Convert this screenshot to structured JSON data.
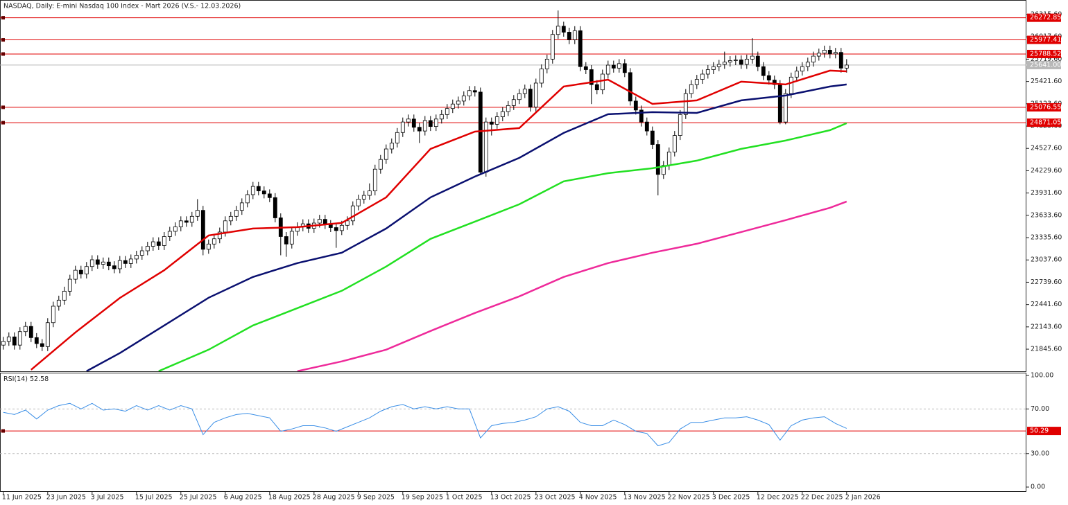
{
  "chart_data": [
    {
      "type": "candlestick",
      "title": "NASDAQ, Daily:  E-mini Nasdaq 100 Index - Mart 2026 (V.S.- 12.03.2026)",
      "xlim": [
        -0.6,
        184.4
      ],
      "ylim": [
        21550,
        26510
      ],
      "yticks": [
        {
          "value": 26315.6,
          "label": "26315.60"
        },
        {
          "value": 26017.6,
          "label": "26017.60"
        },
        {
          "value": 25719.6,
          "label": "25719.60"
        },
        {
          "value": 25421.6,
          "label": "25421.60"
        },
        {
          "value": 25123.6,
          "label": "25123.60"
        },
        {
          "value": 24825.6,
          "label": "24825.60"
        },
        {
          "value": 24527.6,
          "label": "24527.60"
        },
        {
          "value": 24229.6,
          "label": "24229.60"
        },
        {
          "value": 23931.6,
          "label": "23931.60"
        },
        {
          "value": 23633.6,
          "label": "23633.60"
        },
        {
          "value": 23335.6,
          "label": "23335.60"
        },
        {
          "value": 23037.6,
          "label": "23037.60"
        },
        {
          "value": 22739.6,
          "label": "22739.60"
        },
        {
          "value": 22441.6,
          "label": "22441.60"
        },
        {
          "value": 22143.6,
          "label": "22143.60"
        },
        {
          "value": 21845.6,
          "label": "21845.60"
        }
      ],
      "up_color": "#ffffff",
      "down_color": "#000000",
      "open": [
        21900,
        21950,
        22010,
        21900,
        22080,
        22150,
        22000,
        21920,
        21880,
        22200,
        22420,
        22500,
        22620,
        22780,
        22900,
        22850,
        22950,
        23040,
        22980,
        23010,
        22960,
        22920,
        23030,
        22990,
        23050,
        23100,
        23160,
        23220,
        23280,
        23230,
        23350,
        23420,
        23480,
        23560,
        23540,
        23620,
        23700,
        23180,
        23250,
        23320,
        23410,
        23560,
        23620,
        23700,
        23800,
        23910,
        24020,
        23960,
        23920,
        23870,
        23600,
        23350,
        23250,
        23420,
        23480,
        23520,
        23460,
        23530,
        23580,
        23510,
        23470,
        23430,
        23500,
        23560,
        23760,
        23850,
        23900,
        23960,
        24250,
        24380,
        24520,
        24600,
        24740,
        24880,
        24920,
        24810,
        24760,
        24900,
        24820,
        24920,
        24980,
        25060,
        25120,
        25160,
        25230,
        25300,
        25280,
        24210,
        24880,
        24850,
        24950,
        25020,
        25100,
        25180,
        25260,
        25320,
        25080,
        25400,
        25590,
        25720,
        26050,
        26160,
        26080,
        25980,
        26100,
        25620,
        25580,
        25380,
        25310,
        25520,
        25640,
        25600,
        25660,
        25540,
        25160,
        25040,
        24880,
        24760,
        24580,
        24180,
        24300,
        24480,
        24700,
        24980,
        25260,
        25380,
        25450,
        25520,
        25580,
        25620,
        25650,
        25680,
        25700,
        25710,
        25650,
        25720,
        25760,
        25620,
        25500,
        25440,
        25380,
        24880,
        25260,
        25480,
        25560,
        25620,
        25680,
        25760,
        25800,
        25840,
        25790,
        25810,
        25600
      ],
      "high": [
        22010,
        22070,
        22070,
        22140,
        22210,
        22210,
        22060,
        21980,
        22260,
        22480,
        22560,
        22680,
        22840,
        22960,
        22960,
        23010,
        23100,
        23100,
        23070,
        23070,
        23020,
        23090,
        23090,
        23110,
        23160,
        23220,
        23280,
        23340,
        23340,
        23410,
        23480,
        23540,
        23620,
        23620,
        23680,
        23850,
        23760,
        23310,
        23380,
        23470,
        23620,
        23680,
        23760,
        23860,
        23970,
        24080,
        24080,
        24020,
        23980,
        23930,
        23660,
        23410,
        23480,
        23540,
        23580,
        23580,
        23590,
        23640,
        23640,
        23570,
        23530,
        23560,
        23620,
        23820,
        23910,
        23960,
        24060,
        24310,
        24440,
        24580,
        24660,
        24800,
        24940,
        24980,
        24980,
        24870,
        24960,
        24960,
        24980,
        25040,
        25120,
        25180,
        25220,
        25290,
        25360,
        25360,
        25340,
        24940,
        24940,
        25010,
        25080,
        25160,
        25240,
        25320,
        25380,
        25380,
        25460,
        25650,
        25780,
        26110,
        26370,
        26220,
        26140,
        26160,
        26160,
        25680,
        25640,
        25440,
        25580,
        25700,
        25700,
        25720,
        25720,
        25600,
        25220,
        25100,
        24940,
        24820,
        24640,
        24360,
        24540,
        24760,
        25040,
        25320,
        25440,
        25510,
        25580,
        25640,
        25680,
        25710,
        25820,
        25760,
        25770,
        25770,
        25780,
        26000,
        25820,
        25680,
        25560,
        25500,
        25440,
        25320,
        25540,
        25620,
        25680,
        25740,
        25820,
        25860,
        25900,
        25900,
        25870,
        25870,
        25720
      ],
      "low": [
        21840,
        21890,
        21840,
        21840,
        22020,
        21940,
        21860,
        21820,
        21820,
        22140,
        22360,
        22440,
        22560,
        22720,
        22790,
        22790,
        22890,
        22920,
        22920,
        22900,
        22860,
        22860,
        22930,
        22930,
        22990,
        23040,
        23100,
        23160,
        23170,
        23170,
        23290,
        23360,
        23420,
        23480,
        23480,
        23560,
        23100,
        23120,
        23190,
        23260,
        23350,
        23500,
        23560,
        23640,
        23740,
        23850,
        23900,
        23860,
        23810,
        23540,
        23100,
        23080,
        23190,
        23360,
        23420,
        23400,
        23400,
        23470,
        23450,
        23410,
        23200,
        23370,
        23440,
        23500,
        23700,
        23790,
        23840,
        23900,
        24190,
        24320,
        24460,
        24540,
        24680,
        24820,
        24750,
        24600,
        24700,
        24760,
        24760,
        24860,
        24920,
        25000,
        25060,
        25100,
        25170,
        25220,
        24170,
        24150,
        24700,
        24790,
        24890,
        24960,
        25040,
        25120,
        25200,
        25020,
        25020,
        25340,
        25530,
        25660,
        25990,
        26020,
        25920,
        25920,
        25560,
        25520,
        25120,
        25250,
        25250,
        25460,
        25540,
        25540,
        25480,
        25100,
        24980,
        24820,
        24700,
        24520,
        23900,
        24120,
        24240,
        24420,
        24640,
        24920,
        25200,
        25320,
        25390,
        25460,
        25520,
        25560,
        25590,
        25620,
        25640,
        25590,
        25590,
        25660,
        25560,
        25440,
        25380,
        25320,
        24850,
        24850,
        25200,
        25420,
        25500,
        25560,
        25620,
        25700,
        25740,
        25730,
        25730,
        25540,
        25540
      ],
      "close": [
        21950,
        22010,
        21900,
        22080,
        22150,
        22000,
        21920,
        21880,
        22200,
        22420,
        22500,
        22620,
        22780,
        22900,
        22850,
        22950,
        23040,
        22980,
        23010,
        22960,
        22920,
        23030,
        22990,
        23050,
        23100,
        23160,
        23220,
        23280,
        23230,
        23350,
        23420,
        23480,
        23560,
        23540,
        23620,
        23700,
        23180,
        23250,
        23320,
        23410,
        23560,
        23620,
        23700,
        23800,
        23910,
        24020,
        23960,
        23920,
        23870,
        23600,
        23350,
        23250,
        23420,
        23480,
        23520,
        23460,
        23530,
        23580,
        23510,
        23470,
        23430,
        23500,
        23560,
        23760,
        23850,
        23900,
        23960,
        24250,
        24380,
        24520,
        24600,
        24740,
        24880,
        24920,
        24810,
        24760,
        24900,
        24820,
        24920,
        24980,
        25060,
        25120,
        25160,
        25230,
        25300,
        25280,
        24210,
        24880,
        24850,
        24950,
        25020,
        25100,
        25180,
        25260,
        25320,
        25080,
        25400,
        25590,
        25720,
        26050,
        26160,
        26080,
        25980,
        26100,
        25620,
        25580,
        25380,
        25310,
        25520,
        25640,
        25600,
        25660,
        25540,
        25160,
        25040,
        24880,
        24760,
        24580,
        24180,
        24300,
        24480,
        24700,
        24980,
        25260,
        25380,
        25450,
        25520,
        25580,
        25620,
        25650,
        25680,
        25700,
        25710,
        25650,
        25720,
        25760,
        25620,
        25500,
        25440,
        25380,
        24880,
        25260,
        25480,
        25560,
        25620,
        25680,
        25760,
        25800,
        25840,
        25790,
        25810,
        25600,
        25641
      ],
      "series": [
        {
          "color": "#e00000",
          "x": [
            5,
            13,
            21,
            29,
            37,
            45,
            53,
            61,
            69,
            77,
            85,
            93,
            101,
            109,
            117,
            125,
            133,
            141,
            149,
            152
          ],
          "values": [
            21570,
            22070,
            22530,
            22900,
            23365,
            23457,
            23476,
            23532,
            23874,
            24521,
            24752,
            24799,
            25354,
            25446,
            25122,
            25169,
            25419,
            25382,
            25567,
            25557
          ]
        },
        {
          "color": "#0a1070",
          "x": [
            15,
            21,
            29,
            37,
            45,
            53,
            61,
            69,
            77,
            85,
            93,
            101,
            109,
            117,
            125,
            133,
            141,
            149,
            152
          ],
          "values": [
            21552,
            21793,
            22163,
            22533,
            22810,
            22995,
            23134,
            23457,
            23874,
            24151,
            24401,
            24734,
            24984,
            25012,
            25002,
            25169,
            25234,
            25354,
            25382
          ]
        },
        {
          "color": "#22e022",
          "x": [
            28,
            37,
            45,
            53,
            61,
            69,
            77,
            85,
            93,
            101,
            109,
            117,
            125,
            133,
            141,
            149,
            152
          ],
          "values": [
            21552,
            21839,
            22163,
            22394,
            22625,
            22949,
            23319,
            23550,
            23781,
            24087,
            24197,
            24262,
            24364,
            24521,
            24632,
            24771,
            24864
          ]
        },
        {
          "color": "#ee2a9a",
          "x": [
            53,
            61,
            69,
            77,
            85,
            93,
            101,
            109,
            117,
            125,
            133,
            141,
            149,
            152
          ],
          "values": [
            21552,
            21682,
            21839,
            22089,
            22329,
            22551,
            22810,
            22995,
            23134,
            23254,
            23411,
            23569,
            23735,
            23818
          ]
        }
      ],
      "hlines": [
        {
          "value": 26272.85,
          "color": "#e00000"
        },
        {
          "value": 25977.41,
          "color": "#e00000"
        },
        {
          "value": 25788.52,
          "color": "#e00000"
        },
        {
          "value": 25076.55,
          "color": "#e00000"
        },
        {
          "value": 24871.05,
          "color": "#e00000"
        }
      ],
      "last_price": {
        "value": 25641,
        "label": "25641.00"
      },
      "last_price_color": "#b8b8b8"
    },
    {
      "type": "line",
      "title": "RSI(14)",
      "color": "#3a8ee6",
      "xlim": [
        -0.6,
        184.4
      ],
      "ylim": [
        -4.3,
        102.5
      ],
      "x": [
        0,
        2,
        4,
        6,
        8,
        10,
        12,
        14,
        16,
        18,
        20,
        22,
        24,
        26,
        28,
        30,
        32,
        34,
        36,
        38,
        40,
        42,
        44,
        46,
        48,
        50,
        52,
        54,
        56,
        58,
        60,
        62,
        64,
        66,
        68,
        70,
        72,
        74,
        76,
        78,
        80,
        82,
        84,
        86,
        88,
        90,
        92,
        94,
        96,
        98,
        100,
        102,
        104,
        106,
        108,
        110,
        112,
        114,
        116,
        118,
        120,
        122,
        124,
        126,
        128,
        130,
        132,
        134,
        136,
        138,
        140,
        142,
        144,
        146,
        148,
        150,
        152
      ],
      "values": [
        67,
        65,
        69,
        61,
        69,
        73,
        75,
        70,
        75,
        69,
        70,
        68,
        73,
        69,
        73,
        69,
        73,
        70,
        47,
        58,
        62,
        65,
        66,
        64,
        62,
        50,
        52,
        55,
        55,
        53,
        50,
        54,
        58,
        62,
        68,
        72,
        74,
        70,
        72,
        70,
        72,
        70,
        70,
        44,
        55,
        57,
        58,
        60,
        63,
        70,
        72,
        68,
        58,
        55,
        55,
        60,
        56,
        50,
        48,
        37,
        40,
        52,
        58,
        58,
        60,
        62,
        62,
        63,
        60,
        56,
        42,
        55,
        60,
        62,
        63,
        57,
        52.58
      ],
      "yticks": [
        {
          "value": 100,
          "label": "100.00"
        },
        {
          "value": 70,
          "label": "70.00"
        },
        {
          "value": 30,
          "label": "30.00"
        },
        {
          "value": 0,
          "label": "0.00"
        }
      ],
      "levels": [
        70,
        30
      ],
      "hlines": [
        {
          "value": 50.29,
          "color": "#e00000"
        }
      ],
      "xticks": [
        {
          "value": 0,
          "label": "11 Jun 2025"
        },
        {
          "value": 8,
          "label": "23 Jun 2025"
        },
        {
          "value": 16,
          "label": "3 Jul 2025"
        },
        {
          "value": 24,
          "label": "15 Jul 2025"
        },
        {
          "value": 32,
          "label": "25 Jul 2025"
        },
        {
          "value": 40,
          "label": "6 Aug 2025"
        },
        {
          "value": 48,
          "label": "18 Aug 2025"
        },
        {
          "value": 56,
          "label": "28 Aug 2025"
        },
        {
          "value": 64,
          "label": "9 Sep 2025"
        },
        {
          "value": 72,
          "label": "19 Sep 2025"
        },
        {
          "value": 80,
          "label": "1 Oct 2025"
        },
        {
          "value": 88,
          "label": "13 Oct 2025"
        },
        {
          "value": 96,
          "label": "23 Oct 2025"
        },
        {
          "value": 104,
          "label": "4 Nov 2025"
        },
        {
          "value": 112,
          "label": "13 Nov 2025"
        },
        {
          "value": 120,
          "label": "22 Nov 2025"
        },
        {
          "value": 128,
          "label": "3 Dec 2025"
        },
        {
          "value": 136,
          "label": "12 Dec 2025"
        },
        {
          "value": 144,
          "label": "22 Dec 2025"
        },
        {
          "value": 152,
          "label": "2 Jan 2026"
        }
      ]
    }
  ]
}
